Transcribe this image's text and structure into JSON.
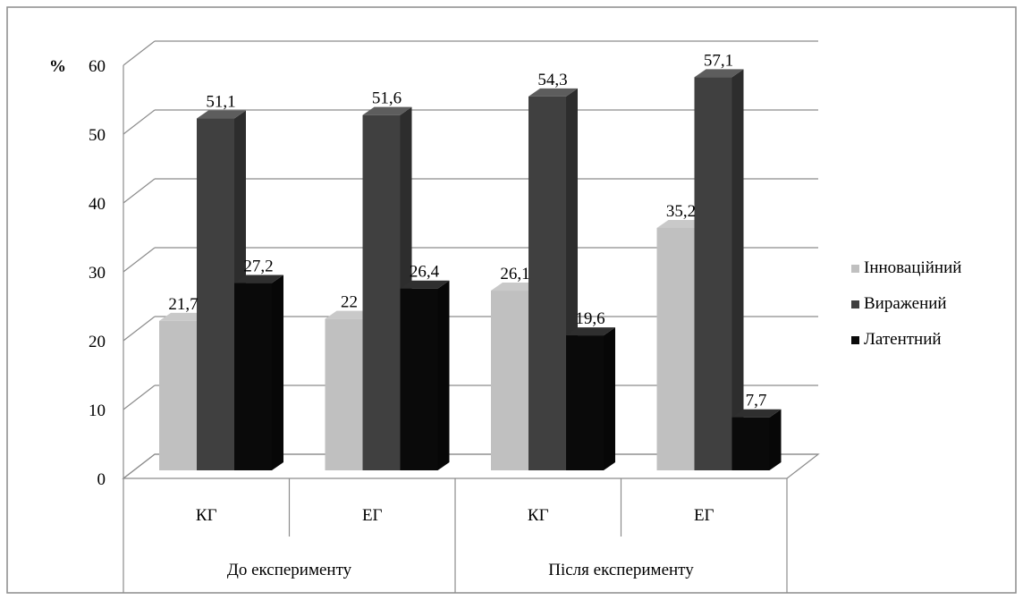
{
  "chart_data": {
    "type": "bar",
    "title": "",
    "ylabel": "%",
    "xlabel": "",
    "ylim": [
      0,
      60
    ],
    "yticks": [
      0,
      10,
      20,
      30,
      40,
      50,
      60
    ],
    "grid": true,
    "three_d": true,
    "groups": [
      {
        "label": "До експерименту",
        "categories": [
          "КГ",
          "ЕГ"
        ]
      },
      {
        "label": "Після експерименту",
        "categories": [
          "КГ",
          "ЕГ"
        ]
      }
    ],
    "categories": [
      "КГ",
      "ЕГ",
      "КГ",
      "ЕГ"
    ],
    "series": [
      {
        "name": "Інноваційний",
        "values": [
          21.7,
          22,
          26.1,
          35.2
        ],
        "labels": [
          "21,7",
          "22",
          "26,1",
          "35,2"
        ],
        "color": "#c0c0c0"
      },
      {
        "name": "Виражений",
        "values": [
          51.1,
          51.6,
          54.3,
          57.1
        ],
        "labels": [
          "51,1",
          "51,6",
          "54,3",
          "57,1"
        ],
        "color": "#404040"
      },
      {
        "name": "Латентний",
        "values": [
          27.2,
          26.4,
          19.6,
          7.7
        ],
        "labels": [
          "27,2",
          "26,4",
          "19,6",
          "7,7"
        ],
        "color": "#0a0a0a"
      }
    ],
    "legend_position": "right"
  }
}
